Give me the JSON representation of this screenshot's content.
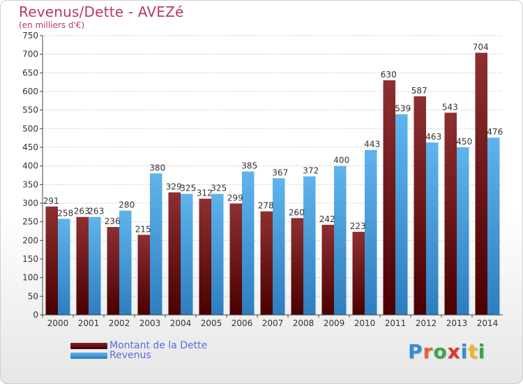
{
  "chart_data": {
    "type": "bar",
    "title": "Revenus/Dette - AVEZé",
    "subtitle": "(en milliers d'€)",
    "categories": [
      "2000",
      "2001",
      "2002",
      "2003",
      "2004",
      "2005",
      "2006",
      "2007",
      "2008",
      "2009",
      "2010",
      "2011",
      "2012",
      "2013",
      "2014"
    ],
    "series": [
      {
        "name": "Montant de la Dette",
        "color": "#8b2426",
        "values": [
          291,
          263,
          236,
          215,
          329,
          312,
          299,
          278,
          260,
          242,
          223,
          630,
          587,
          543,
          704
        ]
      },
      {
        "name": "Revenus",
        "color": "#3b98dc",
        "values": [
          258,
          263,
          280,
          380,
          325,
          325,
          385,
          367,
          372,
          400,
          443,
          539,
          463,
          450,
          476
        ]
      }
    ],
    "ylim": [
      0,
      750
    ],
    "yticks": [
      0,
      50,
      100,
      150,
      200,
      250,
      300,
      350,
      400,
      450,
      500,
      550,
      600,
      650,
      700,
      750
    ],
    "grid": true,
    "legend": "bottom-left"
  },
  "logo": {
    "letters": [
      {
        "ch": "P",
        "color": "#2f8fd8"
      },
      {
        "ch": "r",
        "color": "#e0682a"
      },
      {
        "ch": "o",
        "color": "#3aa64a"
      },
      {
        "ch": "x",
        "color": "#e0342a"
      },
      {
        "ch": "i",
        "color": "#2f8fd8"
      },
      {
        "ch": "t",
        "color": "#f0b62a"
      },
      {
        "ch": "i",
        "color": "#3aa64a"
      }
    ]
  }
}
